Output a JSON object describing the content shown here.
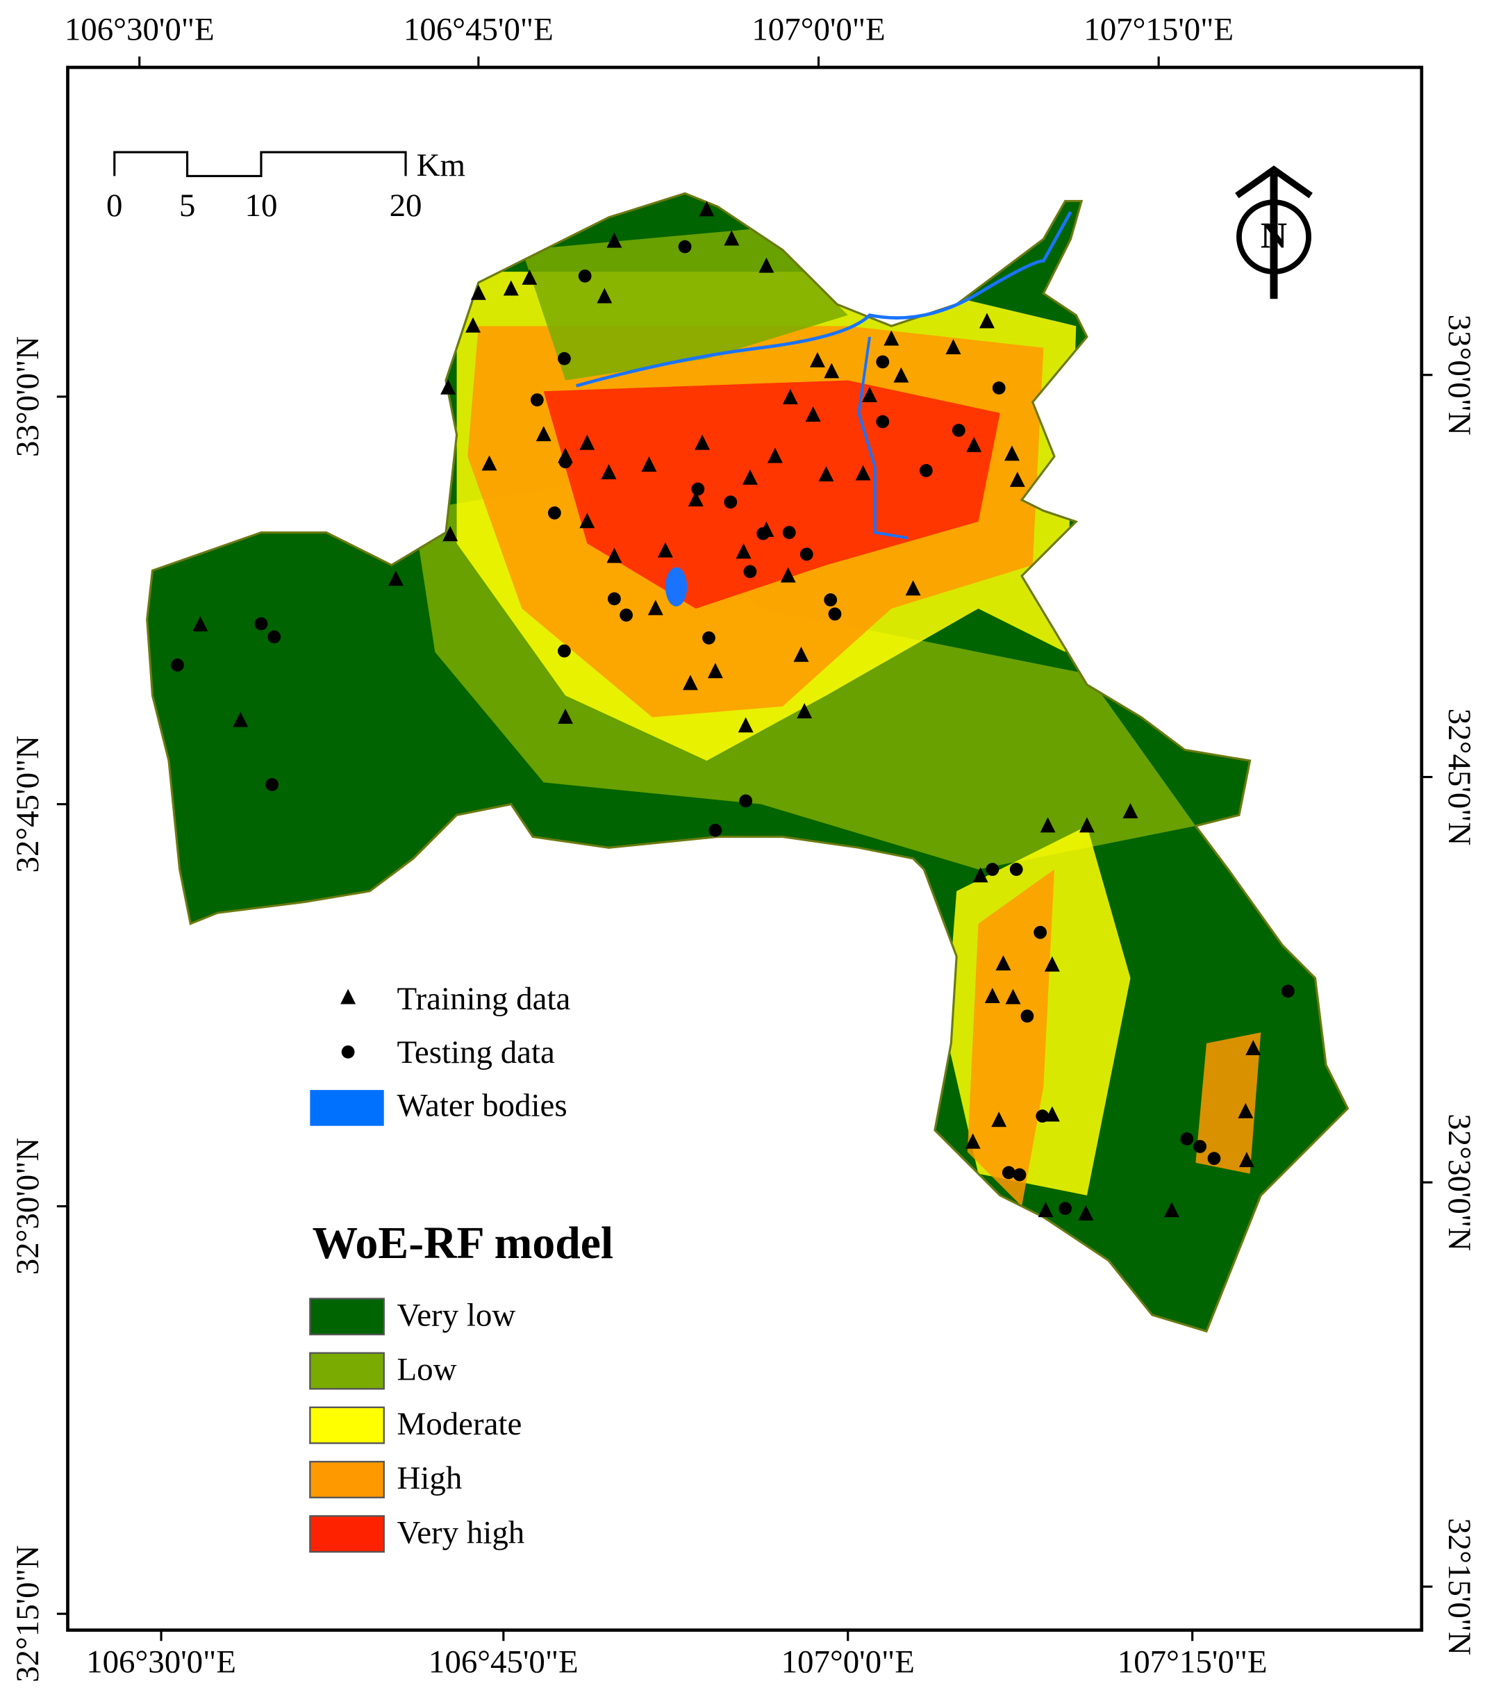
{
  "top_axis_labels": [
    "106°30'0\"E",
    "106°45'0\"E",
    "107°0'0\"E",
    "107°15'0\"E"
  ],
  "bottom_axis_labels": [
    "106°30'0\"E",
    "106°45'0\"E",
    "107°0'0\"E",
    "107°15'0\"E"
  ],
  "left_axis_labels": [
    "33°0'0\"N",
    "32°45'0\"N",
    "32°30'0\"N",
    "32°15'0\"N"
  ],
  "right_axis_labels": [
    "33°0'0\"N",
    "32°45'0\"N",
    "32°30'0\"N",
    "32°15'0\"N"
  ],
  "scale_bar": {
    "labels": [
      "0",
      "5",
      "10",
      "20"
    ],
    "unit": "Km"
  },
  "north_arrow": "N",
  "legend": {
    "points": [
      {
        "label": "Training data"
      },
      {
        "label": "Testing data"
      },
      {
        "label": "Water bodies",
        "color": "#0070ff"
      }
    ],
    "title": "WoE-RF model",
    "classes": [
      {
        "label": "Very low",
        "color": "#006400"
      },
      {
        "label": "Low",
        "color": "#7aab00"
      },
      {
        "label": "Moderate",
        "color": "#ffff00"
      },
      {
        "label": "High",
        "color": "#ff9900"
      },
      {
        "label": "Very high",
        "color": "#ff2200"
      }
    ]
  }
}
